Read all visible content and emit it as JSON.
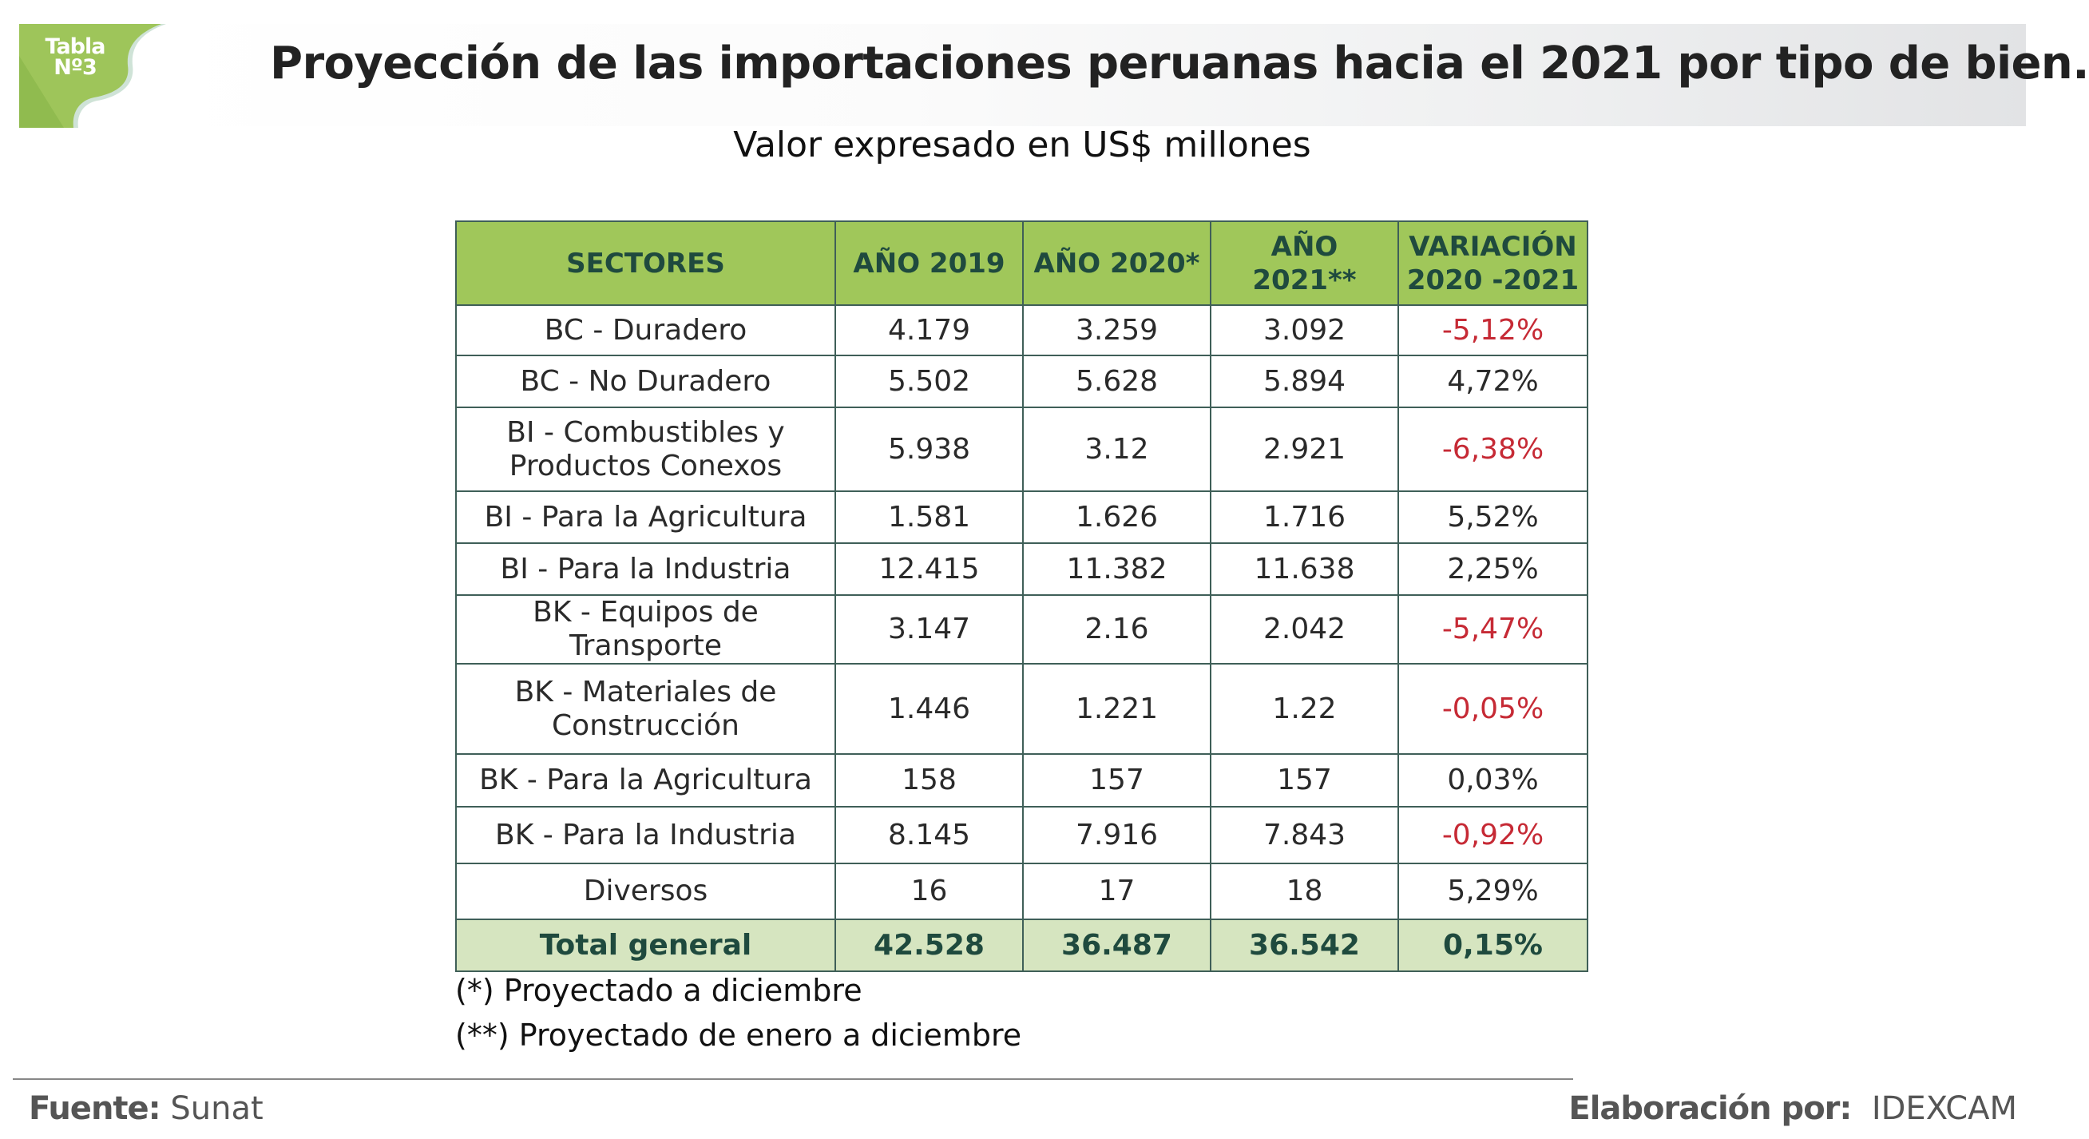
{
  "badge": {
    "line1": "Tabla",
    "line2": "Nº3",
    "color": "#9ec55a"
  },
  "header": {
    "title": "Proyección de las importaciones peruanas hacia el 2021 por tipo de bien.",
    "subtitle": "Valor expresado en US$ millones"
  },
  "table": {
    "columns": [
      "SECTORES",
      "AÑO 2019",
      "AÑO 2020*",
      "AÑO 2021**",
      "VARIACIÓN 2020 -2021"
    ],
    "column_variacion_line1": "VARIACIÓN",
    "column_variacion_line2": "2020 -2021",
    "rows": [
      {
        "sector": "BC - Duradero",
        "y2019": "4.179",
        "y2020": "3.259",
        "y2021": "3.092",
        "variacion": "-5,12%",
        "negative": true
      },
      {
        "sector": "BC - No Duradero",
        "y2019": "5.502",
        "y2020": "5.628",
        "y2021": "5.894",
        "variacion": "4,72%",
        "negative": false
      },
      {
        "sector": "BI - Combustibles y Productos Conexos",
        "y2019": "5.938",
        "y2020": "3.12",
        "y2021": "2.921",
        "variacion": "-6,38%",
        "negative": true
      },
      {
        "sector": "BI - Para la Agricultura",
        "y2019": "1.581",
        "y2020": "1.626",
        "y2021": "1.716",
        "variacion": "5,52%",
        "negative": false
      },
      {
        "sector": "BI - Para la Industria",
        "y2019": "12.415",
        "y2020": "11.382",
        "y2021": "11.638",
        "variacion": "2,25%",
        "negative": false
      },
      {
        "sector": "BK - Equipos de Transporte",
        "y2019": "3.147",
        "y2020": "2.16",
        "y2021": "2.042",
        "variacion": "-5,47%",
        "negative": true
      },
      {
        "sector": "BK - Materiales de Construcción",
        "y2019": "1.446",
        "y2020": "1.221",
        "y2021": "1.22",
        "variacion": "-0,05%",
        "negative": true
      },
      {
        "sector": "BK - Para la Agricultura",
        "y2019": "158",
        "y2020": "157",
        "y2021": "157",
        "variacion": "0,03%",
        "negative": false
      },
      {
        "sector": "BK - Para la Industria",
        "y2019": "8.145",
        "y2020": "7.916",
        "y2021": "7.843",
        "variacion": "-0,92%",
        "negative": true
      },
      {
        "sector": "Diversos",
        "y2019": "16",
        "y2020": "17",
        "y2021": "18",
        "variacion": "5,29%",
        "negative": false
      }
    ],
    "total": {
      "sector": "Total general",
      "y2019": "42.528",
      "y2020": "36.487",
      "y2021": "36.542",
      "variacion": "0,15%"
    },
    "colors": {
      "header_bg": "#a0c75a",
      "header_text": "#1f4a3e",
      "total_bg": "#d6e5c0",
      "negative_text": "#c62a35",
      "border": "#3f5f58"
    }
  },
  "notes": [
    "(*) Proyectado a diciembre",
    "(**) Proyectado de enero a diciembre"
  ],
  "footer": {
    "source_label": "Fuente:",
    "source_value": "Sunat",
    "credit_label": "Elaboración por:",
    "credit_value": "IDEXCAM"
  }
}
